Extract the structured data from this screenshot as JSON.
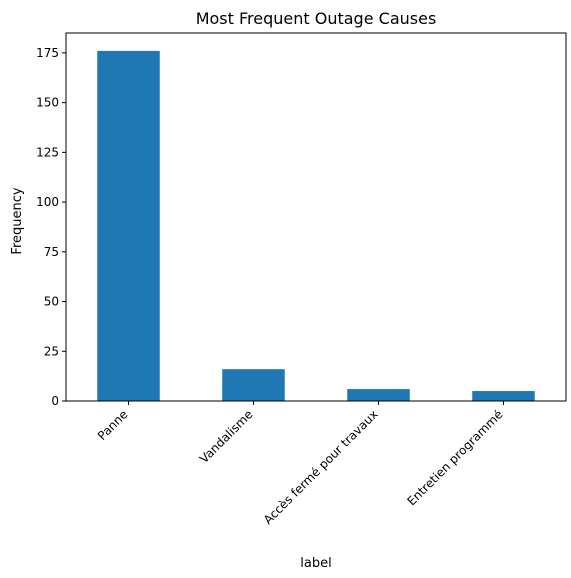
{
  "chart_data": {
    "type": "bar",
    "title": "Most Frequent Outage Causes",
    "xlabel": "label",
    "ylabel": "Frequency",
    "categories": [
      "Panne",
      "Vandalisme",
      "Accès fermé pour travaux",
      "Entretien programmé"
    ],
    "values": [
      176,
      16,
      6,
      5
    ],
    "ylim": [
      0,
      185
    ],
    "yticks": [
      0,
      25,
      50,
      75,
      100,
      125,
      150,
      175
    ],
    "ytick_labels": [
      "0",
      "25",
      "50",
      "75",
      "100",
      "125",
      "150",
      "175"
    ],
    "bar_color": "#1f77b4",
    "grid": false,
    "legend": "none"
  }
}
